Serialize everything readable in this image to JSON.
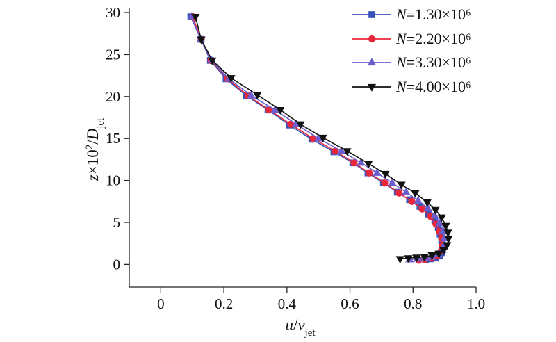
{
  "chart_data": {
    "type": "line",
    "xlabel": {
      "parts": [
        {
          "t": "u",
          "style": "italic"
        },
        {
          "t": "/"
        },
        {
          "t": "v",
          "style": "italic"
        },
        {
          "t": "jet",
          "style": "sub"
        }
      ]
    },
    "ylabel": {
      "parts": [
        {
          "t": "z",
          "style": "italic"
        },
        {
          "t": "×10"
        },
        {
          "t": "2",
          "style": "sup"
        },
        {
          "t": "/"
        },
        {
          "t": "D",
          "style": "italic"
        },
        {
          "t": "jet",
          "style": "sub"
        }
      ]
    },
    "xlim": [
      -0.1,
      1.0
    ],
    "ylim": [
      -2.7,
      30.5
    ],
    "xticks": [
      0,
      0.2,
      0.4,
      0.6,
      0.8,
      1.0
    ],
    "xtick_labels": [
      "0",
      "0.2",
      "0.4",
      "0.6",
      "0.8",
      "1.0"
    ],
    "yticks": [
      0,
      5,
      10,
      15,
      20,
      25,
      30
    ],
    "ytick_labels": [
      "0",
      "5",
      "10",
      "15",
      "20",
      "25",
      "30"
    ],
    "grid": false,
    "legend": "top-right",
    "series": [
      {
        "name": "N=1.30×10⁶",
        "marker": "square",
        "color": "#3452b8",
        "x": [
          0.095,
          0.128,
          0.157,
          0.207,
          0.271,
          0.34,
          0.408,
          0.479,
          0.549,
          0.609,
          0.657,
          0.706,
          0.75,
          0.789,
          0.822,
          0.849,
          0.869,
          0.88,
          0.886,
          0.891,
          0.893,
          0.891,
          0.884,
          0.871,
          0.856,
          0.84
        ],
        "y": [
          29.5,
          26.8,
          24.3,
          22.1,
          20.1,
          18.4,
          16.6,
          14.9,
          13.4,
          12.1,
          10.9,
          9.7,
          8.6,
          7.7,
          6.9,
          6.0,
          5.2,
          4.4,
          3.6,
          2.8,
          2.1,
          1.4,
          1.0,
          0.75,
          0.66,
          0.58
        ]
      },
      {
        "name": "N=2.20×10⁶",
        "marker": "circle",
        "color": "#e8283a",
        "x": [
          0.101,
          0.128,
          0.159,
          0.212,
          0.276,
          0.344,
          0.412,
          0.483,
          0.553,
          0.613,
          0.661,
          0.71,
          0.756,
          0.796,
          0.829,
          0.856,
          0.873,
          0.884,
          0.891,
          0.893,
          0.889,
          0.878,
          0.86,
          0.838,
          0.818
        ],
        "y": [
          29.5,
          26.8,
          24.3,
          22.1,
          20.1,
          18.4,
          16.7,
          15.0,
          13.5,
          12.1,
          10.9,
          9.7,
          8.5,
          7.5,
          6.6,
          5.7,
          4.8,
          3.9,
          3.1,
          2.3,
          1.6,
          1.1,
          0.75,
          0.58,
          0.5
        ]
      },
      {
        "name": "N=3.30×10⁶",
        "marker": "triangle-up",
        "color": "#6b5fcf",
        "x": [
          0.097,
          0.126,
          0.161,
          0.216,
          0.287,
          0.362,
          0.43,
          0.5,
          0.573,
          0.635,
          0.686,
          0.734,
          0.778,
          0.816,
          0.847,
          0.869,
          0.884,
          0.895,
          0.9,
          0.9,
          0.893,
          0.88,
          0.86,
          0.838,
          0.814,
          0.789
        ],
        "y": [
          29.5,
          26.8,
          24.3,
          22.1,
          20.1,
          18.4,
          16.7,
          15.0,
          13.5,
          12.1,
          10.9,
          9.7,
          8.6,
          7.6,
          6.7,
          5.8,
          4.9,
          4.0,
          3.1,
          2.4,
          1.7,
          1.2,
          0.9,
          0.75,
          0.66,
          0.58
        ]
      },
      {
        "name": "N=4.00×10⁶",
        "marker": "triangle-down",
        "color": "#111111",
        "x": [
          0.11,
          0.128,
          0.163,
          0.223,
          0.306,
          0.379,
          0.443,
          0.514,
          0.591,
          0.659,
          0.712,
          0.763,
          0.807,
          0.845,
          0.871,
          0.891,
          0.904,
          0.911,
          0.913,
          0.908,
          0.897,
          0.882,
          0.86,
          0.836,
          0.811,
          0.785,
          0.759
        ],
        "y": [
          29.5,
          26.8,
          24.3,
          22.2,
          20.2,
          18.4,
          16.7,
          15.1,
          13.5,
          12.0,
          10.8,
          9.5,
          8.5,
          7.4,
          6.5,
          5.6,
          4.6,
          3.8,
          3.1,
          2.3,
          1.7,
          1.3,
          1.1,
          0.9,
          0.83,
          0.75,
          0.66
        ]
      }
    ]
  }
}
